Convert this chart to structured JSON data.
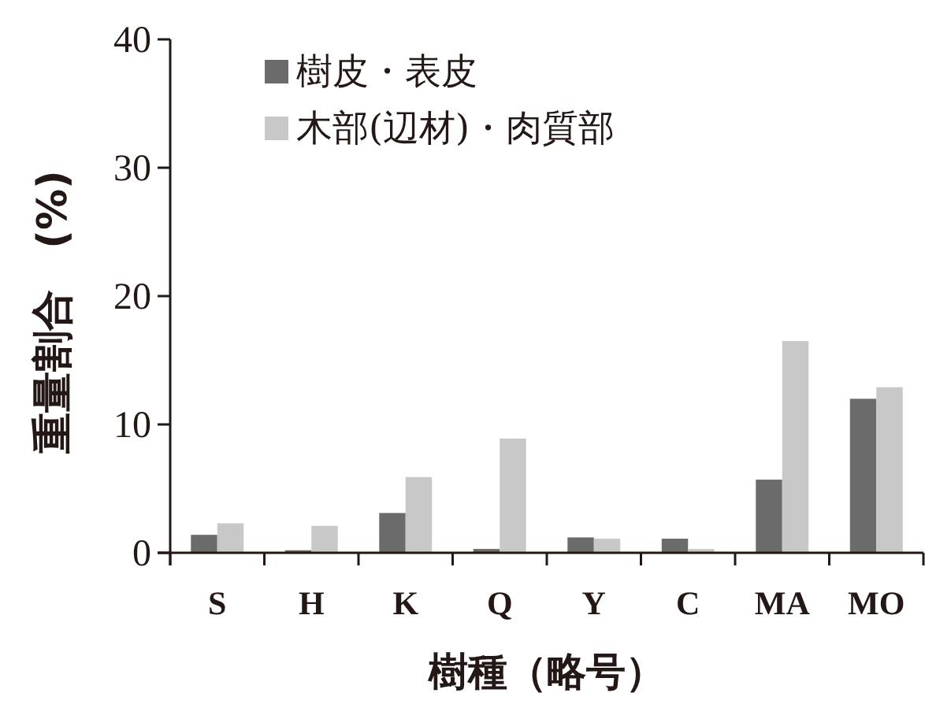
{
  "chart_data": {
    "type": "bar",
    "xlabel": "樹種（略号）",
    "ylabel": "重量割合　(%)",
    "categories": [
      "S",
      "H",
      "K",
      "Q",
      "Y",
      "C",
      "MA",
      "MO"
    ],
    "series": [
      {
        "name": "樹皮・表皮",
        "color": "#6b6b6b",
        "values": [
          1.4,
          0.2,
          3.1,
          0.3,
          1.2,
          1.1,
          5.7,
          12.0
        ]
      },
      {
        "name": "木部(辺材)・肉質部",
        "color": "#c8c8c8",
        "values": [
          2.3,
          2.1,
          5.9,
          8.9,
          1.1,
          0.3,
          16.5,
          12.9
        ]
      }
    ],
    "ylim": [
      0,
      40
    ],
    "yticks": [
      0,
      10,
      20,
      30,
      40
    ],
    "legend": "top left",
    "grid": false
  }
}
